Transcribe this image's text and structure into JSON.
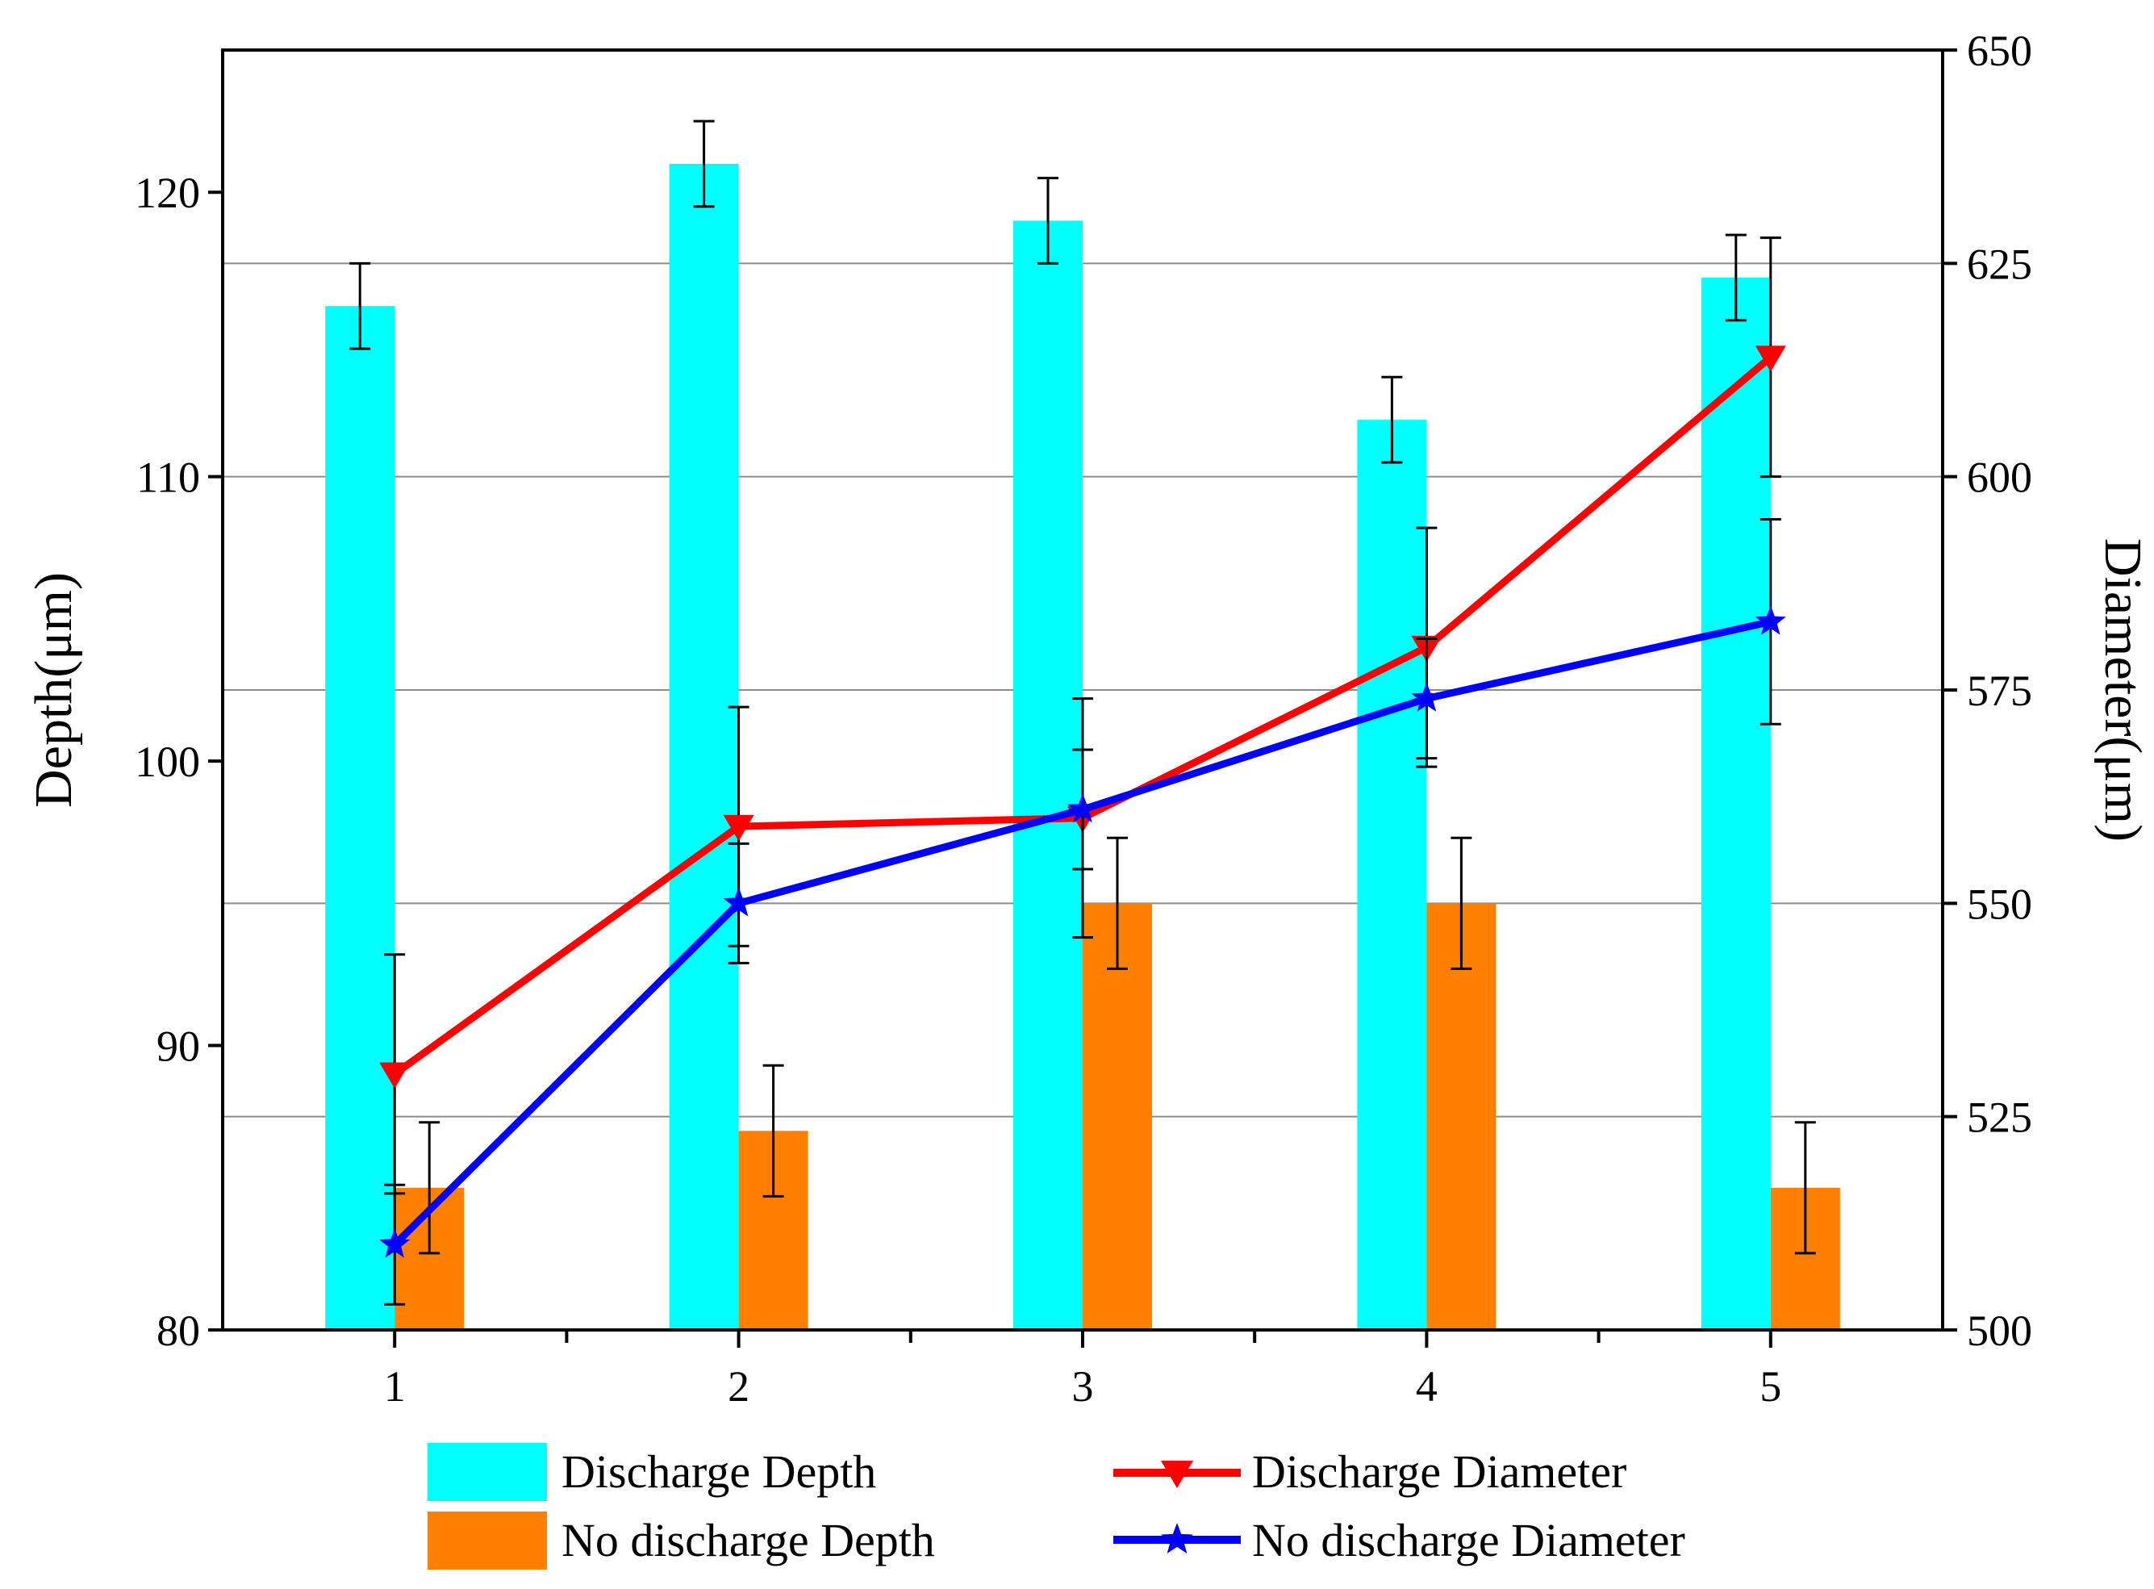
{
  "chart_data": {
    "type": "bar",
    "categories": [
      "1",
      "2",
      "3",
      "4",
      "5"
    ],
    "left_axis": {
      "label": "Depth(μm)",
      "ylim": [
        80,
        125
      ],
      "ticks": [
        80,
        90,
        100,
        110,
        120
      ]
    },
    "right_axis": {
      "label": "Diameter(μm)",
      "ylim": [
        500,
        650
      ],
      "ticks": [
        500,
        525,
        550,
        575,
        600,
        625,
        650
      ]
    },
    "grid": true,
    "legend_position": "bottom",
    "bar_series": [
      {
        "name": "Discharge Depth",
        "color": "#00ffff",
        "axis": "left",
        "values": [
          116,
          121,
          119,
          112,
          117
        ],
        "errors": [
          1.5,
          1.5,
          1.5,
          1.5,
          1.5
        ]
      },
      {
        "name": "No discharge Depth",
        "color": "#ff7f00",
        "axis": "left",
        "values": [
          85,
          87,
          95,
          95,
          85
        ],
        "errors": [
          2.3,
          2.3,
          2.3,
          2.3,
          2.3
        ]
      }
    ],
    "line_series": [
      {
        "name": "Discharge Diameter",
        "color": "#ff0000",
        "marker": "triangle-down",
        "axis": "right",
        "values": [
          530,
          559,
          560,
          580,
          614
        ],
        "errors": [
          14,
          14,
          14,
          14,
          14
        ]
      },
      {
        "name": "No discharge Diameter",
        "color": "#0000ff",
        "marker": "star",
        "axis": "right",
        "values": [
          510,
          550,
          561,
          574,
          583
        ],
        "errors": [
          7,
          7,
          7,
          7,
          12
        ]
      }
    ]
  }
}
